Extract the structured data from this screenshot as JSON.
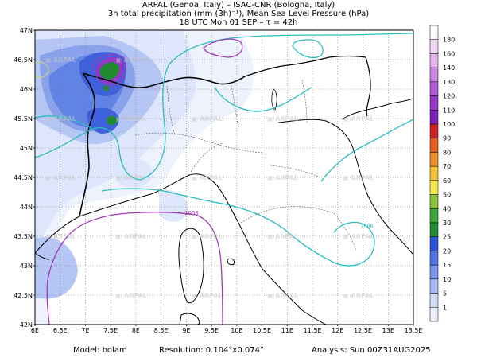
{
  "header": {
    "line1": "ARPAL (Genoa, Italy)  –  ISAC-CNR (Bologna, Italy)",
    "line2": "3h total precipitation (mm (3h)⁻¹), Mean Sea Level Pressure (hPa)",
    "line3": "18 UTC Mon 01 SEP  –  τ = 42h"
  },
  "map": {
    "lat_labels": [
      "47N",
      "46.5N",
      "46N",
      "45.5N",
      "45N",
      "44.5N",
      "44N",
      "43.5N",
      "43N",
      "42.5N",
      "42N"
    ],
    "lon_labels": [
      "6E",
      "6.5E",
      "7E",
      "7.5E",
      "8E",
      "8.5E",
      "9E",
      "9.5E",
      "10E",
      "10.5E",
      "11E",
      "11.5E",
      "12E",
      "12.5E",
      "13E",
      "13.5E"
    ],
    "lat_values": [
      47,
      46.5,
      46,
      45.5,
      45,
      44.5,
      44,
      43.5,
      43,
      42.5,
      42
    ],
    "lon_values": [
      6,
      6.5,
      7,
      7.5,
      8,
      8.5,
      9,
      9.5,
      10,
      10.5,
      11,
      11.5,
      12,
      12.5,
      13,
      13.5
    ],
    "isobar_label": "1008",
    "isobar_label_east": "1008",
    "watermark": "ARPAL"
  },
  "colorbar": {
    "levels": [
      "180",
      "160",
      "140",
      "130",
      "120",
      "110",
      "100",
      "90",
      "80",
      "70",
      "60",
      "50",
      "40",
      "30",
      "25",
      "20",
      "15",
      "10",
      "5",
      "1"
    ],
    "colors": [
      "#ffffff",
      "#f0d8f4",
      "#e7b4ef",
      "#cf86e3",
      "#b25ad6",
      "#9437c9",
      "#7a1fb8",
      "#cc2222",
      "#e45c1e",
      "#ef8f2a",
      "#f3c335",
      "#f5e84a",
      "#89c23d",
      "#3aa63a",
      "#1f8a2e",
      "#2a4fd8",
      "#4f72e3",
      "#7995ec",
      "#a6b9f2",
      "#d0dcf8",
      "#ebf0fc"
    ]
  },
  "footer": {
    "model": "Model:  bolam",
    "resolution": "Resolution:  0.104°x0.074°",
    "analysis": "Analysis:  Sun  00Z31AUG2025"
  }
}
